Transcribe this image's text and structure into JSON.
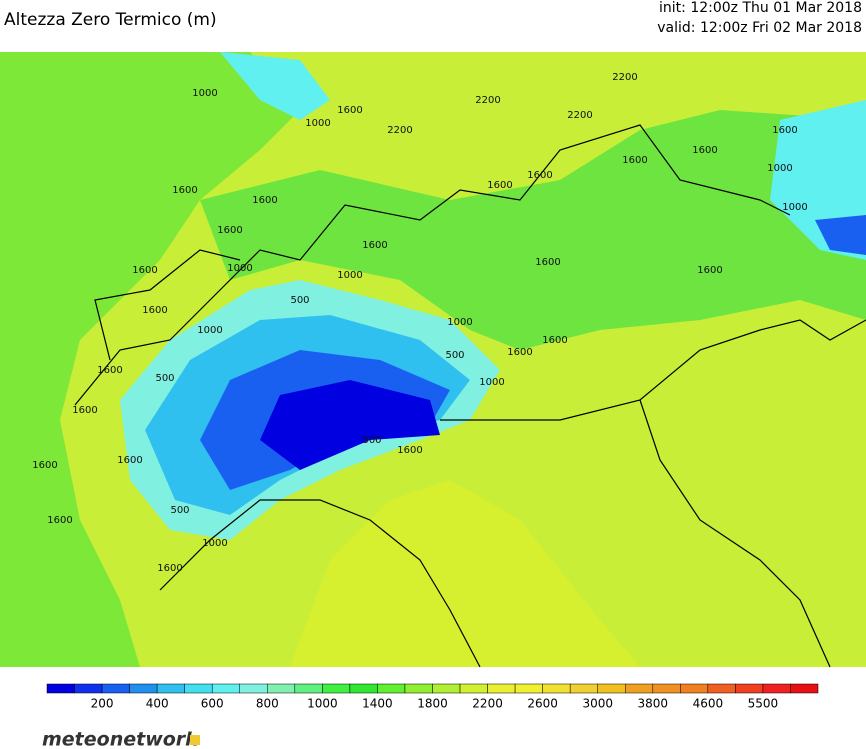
{
  "header": {
    "title": "Altezza Zero Termico (m)",
    "init": "init: 12:00z Thu 01 Mar 2018",
    "valid": "valid: 12:00z Fri 02 Mar 2018"
  },
  "contour_labels": [
    1000,
    1000,
    1600,
    2200,
    2200,
    2200,
    2200,
    1600,
    1600,
    1600,
    1600,
    1600,
    1600,
    1600,
    1600,
    1600,
    1000,
    1600,
    1600,
    1000,
    500,
    1000,
    1000,
    500,
    1000,
    1600,
    1600,
    500,
    1600,
    1600,
    1600,
    1600,
    500,
    1600,
    1000,
    1600,
    500,
    1600,
    1600,
    1600,
    1000,
    1000
  ],
  "colorbar": {
    "colors": [
      "#0000e0",
      "#1030f0",
      "#1a60f0",
      "#2090f0",
      "#30c0f0",
      "#40e0f0",
      "#60f0f0",
      "#80f0e0",
      "#80f0b0",
      "#60f080",
      "#40f040",
      "#30e830",
      "#60f030",
      "#90f030",
      "#b0f030",
      "#d0f030",
      "#e8f030",
      "#f0f030",
      "#f0e030",
      "#f0d030",
      "#f0c020",
      "#f0a020",
      "#f09020",
      "#f08020",
      "#f06020",
      "#f04020",
      "#f02020",
      "#e81010"
    ],
    "labels": [
      200,
      400,
      600,
      800,
      1000,
      1400,
      1800,
      2200,
      2600,
      3000,
      3800,
      4600,
      5500
    ]
  },
  "brand": "meteonetwork"
}
